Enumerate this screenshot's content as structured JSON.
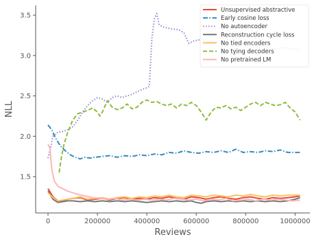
{
  "chart_data": {
    "type": "line",
    "xlabel": "Reviews",
    "ylabel": "NLL",
    "xlim": [
      -50000,
      1060000
    ],
    "ylim": [
      1.05,
      3.62
    ],
    "x_ticks": [
      0,
      200000,
      400000,
      600000,
      800000,
      1000000
    ],
    "x_tick_labels": [
      "0",
      "200000",
      "400000",
      "600000",
      "800000",
      "1000000"
    ],
    "y_ticks": [
      1.5,
      2.0,
      2.5,
      3.0,
      3.5
    ],
    "y_tick_labels": [
      "1.5",
      "2.0",
      "2.5",
      "3.0",
      "3.5"
    ],
    "grid": false,
    "legend_position": "top-right",
    "series": [
      {
        "name": "Unsupervised abstractive",
        "color": "#e24a33",
        "dash": "solid",
        "points": [
          [
            0,
            1.35
          ],
          [
            20000,
            1.25
          ],
          [
            40000,
            1.2
          ],
          [
            60000,
            1.2
          ],
          [
            80000,
            1.22
          ],
          [
            100000,
            1.23
          ],
          [
            130000,
            1.24
          ],
          [
            160000,
            1.21
          ],
          [
            190000,
            1.22
          ],
          [
            220000,
            1.23
          ],
          [
            250000,
            1.21
          ],
          [
            280000,
            1.23
          ],
          [
            310000,
            1.24
          ],
          [
            340000,
            1.22
          ],
          [
            370000,
            1.23
          ],
          [
            400000,
            1.22
          ],
          [
            430000,
            1.24
          ],
          [
            460000,
            1.23
          ],
          [
            490000,
            1.25
          ],
          [
            520000,
            1.23
          ],
          [
            550000,
            1.22
          ],
          [
            580000,
            1.25
          ],
          [
            610000,
            1.24
          ],
          [
            640000,
            1.22
          ],
          [
            670000,
            1.24
          ],
          [
            700000,
            1.25
          ],
          [
            730000,
            1.23
          ],
          [
            760000,
            1.22
          ],
          [
            790000,
            1.24
          ],
          [
            820000,
            1.25
          ],
          [
            850000,
            1.23
          ],
          [
            880000,
            1.22
          ],
          [
            910000,
            1.24
          ],
          [
            940000,
            1.23
          ],
          [
            970000,
            1.24
          ],
          [
            1000000,
            1.25
          ],
          [
            1020000,
            1.26
          ]
        ]
      },
      {
        "name": "Early cosine loss",
        "color": "#348abd",
        "dash": "dashdot",
        "points": [
          [
            0,
            2.14
          ],
          [
            15000,
            2.08
          ],
          [
            30000,
            1.98
          ],
          [
            50000,
            1.88
          ],
          [
            70000,
            1.82
          ],
          [
            90000,
            1.77
          ],
          [
            110000,
            1.74
          ],
          [
            130000,
            1.72
          ],
          [
            150000,
            1.74
          ],
          [
            170000,
            1.73
          ],
          [
            190000,
            1.74
          ],
          [
            220000,
            1.75
          ],
          [
            250000,
            1.76
          ],
          [
            280000,
            1.74
          ],
          [
            310000,
            1.76
          ],
          [
            340000,
            1.75
          ],
          [
            370000,
            1.77
          ],
          [
            400000,
            1.76
          ],
          [
            430000,
            1.78
          ],
          [
            460000,
            1.77
          ],
          [
            490000,
            1.8
          ],
          [
            520000,
            1.79
          ],
          [
            550000,
            1.82
          ],
          [
            580000,
            1.8
          ],
          [
            610000,
            1.79
          ],
          [
            640000,
            1.81
          ],
          [
            670000,
            1.8
          ],
          [
            700000,
            1.82
          ],
          [
            730000,
            1.8
          ],
          [
            760000,
            1.84
          ],
          [
            790000,
            1.8
          ],
          [
            820000,
            1.81
          ],
          [
            850000,
            1.8
          ],
          [
            880000,
            1.82
          ],
          [
            910000,
            1.81
          ],
          [
            940000,
            1.83
          ],
          [
            970000,
            1.8
          ],
          [
            1000000,
            1.8
          ],
          [
            1020000,
            1.8
          ]
        ]
      },
      {
        "name": "No autoencoder",
        "color": "#988ed5",
        "dash": "dotted",
        "points": [
          [
            0,
            1.73
          ],
          [
            10000,
            1.85
          ],
          [
            20000,
            2.0
          ],
          [
            40000,
            2.05
          ],
          [
            60000,
            2.06
          ],
          [
            80000,
            2.08
          ],
          [
            100000,
            2.12
          ],
          [
            120000,
            2.2
          ],
          [
            140000,
            2.3
          ],
          [
            160000,
            2.38
          ],
          [
            180000,
            2.44
          ],
          [
            200000,
            2.48
          ],
          [
            220000,
            2.46
          ],
          [
            240000,
            2.42
          ],
          [
            260000,
            2.48
          ],
          [
            280000,
            2.5
          ],
          [
            300000,
            2.48
          ],
          [
            320000,
            2.5
          ],
          [
            340000,
            2.52
          ],
          [
            360000,
            2.55
          ],
          [
            380000,
            2.58
          ],
          [
            400000,
            2.6
          ],
          [
            410000,
            2.62
          ],
          [
            420000,
            3.2
          ],
          [
            430000,
            3.45
          ],
          [
            440000,
            3.52
          ],
          [
            450000,
            3.38
          ],
          [
            470000,
            3.35
          ],
          [
            500000,
            3.33
          ],
          [
            530000,
            3.32
          ],
          [
            550000,
            3.28
          ],
          [
            570000,
            3.15
          ],
          [
            590000,
            3.18
          ],
          [
            620000,
            3.2
          ],
          [
            650000,
            3.17
          ],
          [
            680000,
            3.18
          ],
          [
            710000,
            3.15
          ],
          [
            740000,
            3.17
          ],
          [
            770000,
            3.12
          ],
          [
            800000,
            3.14
          ],
          [
            830000,
            3.1
          ],
          [
            860000,
            3.12
          ],
          [
            890000,
            3.1
          ],
          [
            920000,
            3.08
          ],
          [
            950000,
            3.1
          ],
          [
            980000,
            3.08
          ],
          [
            1000000,
            3.1
          ],
          [
            1020000,
            3.05
          ]
        ]
      },
      {
        "name": "Reconstruction cycle loss",
        "color": "#777777",
        "dash": "solid",
        "points": [
          [
            0,
            1.32
          ],
          [
            20000,
            1.22
          ],
          [
            40000,
            1.18
          ],
          [
            60000,
            1.19
          ],
          [
            80000,
            1.2
          ],
          [
            100000,
            1.2
          ],
          [
            130000,
            1.19
          ],
          [
            160000,
            1.2
          ],
          [
            190000,
            1.19
          ],
          [
            220000,
            1.2
          ],
          [
            250000,
            1.19
          ],
          [
            280000,
            1.2
          ],
          [
            310000,
            1.19
          ],
          [
            340000,
            1.2
          ],
          [
            370000,
            1.19
          ],
          [
            400000,
            1.18
          ],
          [
            430000,
            1.19
          ],
          [
            460000,
            1.2
          ],
          [
            490000,
            1.19
          ],
          [
            520000,
            1.2
          ],
          [
            550000,
            1.19
          ],
          [
            580000,
            1.2
          ],
          [
            600000,
            1.18
          ],
          [
            620000,
            1.17
          ],
          [
            640000,
            1.19
          ],
          [
            670000,
            1.2
          ],
          [
            700000,
            1.19
          ],
          [
            730000,
            1.2
          ],
          [
            760000,
            1.19
          ],
          [
            790000,
            1.2
          ],
          [
            820000,
            1.19
          ],
          [
            850000,
            1.2
          ],
          [
            880000,
            1.19
          ],
          [
            910000,
            1.2
          ],
          [
            940000,
            1.19
          ],
          [
            970000,
            1.2
          ],
          [
            1000000,
            1.22
          ],
          [
            1020000,
            1.24
          ]
        ]
      },
      {
        "name": "No tied encoders",
        "color": "#fbc15e",
        "dash": "solid",
        "points": [
          [
            0,
            1.3
          ],
          [
            20000,
            1.24
          ],
          [
            40000,
            1.2
          ],
          [
            60000,
            1.21
          ],
          [
            80000,
            1.22
          ],
          [
            100000,
            1.23
          ],
          [
            130000,
            1.25
          ],
          [
            160000,
            1.22
          ],
          [
            190000,
            1.23
          ],
          [
            220000,
            1.24
          ],
          [
            250000,
            1.22
          ],
          [
            280000,
            1.24
          ],
          [
            310000,
            1.25
          ],
          [
            340000,
            1.23
          ],
          [
            370000,
            1.25
          ],
          [
            400000,
            1.24
          ],
          [
            430000,
            1.26
          ],
          [
            460000,
            1.25
          ],
          [
            490000,
            1.27
          ],
          [
            520000,
            1.25
          ],
          [
            550000,
            1.24
          ],
          [
            580000,
            1.27
          ],
          [
            610000,
            1.26
          ],
          [
            640000,
            1.25
          ],
          [
            670000,
            1.27
          ],
          [
            700000,
            1.26
          ],
          [
            730000,
            1.25
          ],
          [
            760000,
            1.27
          ],
          [
            790000,
            1.26
          ],
          [
            820000,
            1.28
          ],
          [
            850000,
            1.26
          ],
          [
            880000,
            1.25
          ],
          [
            910000,
            1.27
          ],
          [
            940000,
            1.26
          ],
          [
            970000,
            1.27
          ],
          [
            1000000,
            1.27
          ],
          [
            1020000,
            1.27
          ]
        ]
      },
      {
        "name": "No tying decoders",
        "color": "#8eba42",
        "dash": "dashed",
        "points": [
          [
            45000,
            1.55
          ],
          [
            55000,
            1.75
          ],
          [
            65000,
            1.9
          ],
          [
            80000,
            2.05
          ],
          [
            100000,
            2.2
          ],
          [
            120000,
            2.28
          ],
          [
            140000,
            2.3
          ],
          [
            160000,
            2.32
          ],
          [
            180000,
            2.35
          ],
          [
            200000,
            2.3
          ],
          [
            210000,
            2.25
          ],
          [
            220000,
            2.3
          ],
          [
            240000,
            2.44
          ],
          [
            260000,
            2.36
          ],
          [
            280000,
            2.33
          ],
          [
            300000,
            2.35
          ],
          [
            320000,
            2.4
          ],
          [
            340000,
            2.34
          ],
          [
            360000,
            2.36
          ],
          [
            380000,
            2.42
          ],
          [
            400000,
            2.45
          ],
          [
            420000,
            2.42
          ],
          [
            440000,
            2.43
          ],
          [
            460000,
            2.4
          ],
          [
            480000,
            2.38
          ],
          [
            500000,
            2.4
          ],
          [
            520000,
            2.35
          ],
          [
            540000,
            2.4
          ],
          [
            560000,
            2.38
          ],
          [
            580000,
            2.42
          ],
          [
            600000,
            2.38
          ],
          [
            620000,
            2.3
          ],
          [
            640000,
            2.2
          ],
          [
            660000,
            2.3
          ],
          [
            680000,
            2.36
          ],
          [
            700000,
            2.35
          ],
          [
            720000,
            2.38
          ],
          [
            740000,
            2.34
          ],
          [
            760000,
            2.36
          ],
          [
            780000,
            2.32
          ],
          [
            800000,
            2.36
          ],
          [
            820000,
            2.4
          ],
          [
            840000,
            2.42
          ],
          [
            860000,
            2.38
          ],
          [
            880000,
            2.42
          ],
          [
            900000,
            2.4
          ],
          [
            920000,
            2.38
          ],
          [
            940000,
            2.39
          ],
          [
            960000,
            2.42
          ],
          [
            980000,
            2.35
          ],
          [
            1000000,
            2.3
          ],
          [
            1020000,
            2.2
          ]
        ]
      },
      {
        "name": "No pretrained LM",
        "color": "#ffb5b8",
        "dash": "solid",
        "points": [
          [
            0,
            1.9
          ],
          [
            8000,
            1.85
          ],
          [
            15000,
            1.6
          ],
          [
            25000,
            1.45
          ],
          [
            40000,
            1.38
          ],
          [
            60000,
            1.35
          ],
          [
            80000,
            1.32
          ],
          [
            100000,
            1.3
          ],
          [
            120000,
            1.28
          ],
          [
            150000,
            1.26
          ],
          [
            180000,
            1.24
          ],
          [
            210000,
            1.23
          ],
          [
            240000,
            1.22
          ],
          [
            270000,
            1.23
          ],
          [
            300000,
            1.21
          ],
          [
            330000,
            1.22
          ],
          [
            360000,
            1.21
          ],
          [
            390000,
            1.22
          ],
          [
            420000,
            1.21
          ],
          [
            450000,
            1.22
          ],
          [
            480000,
            1.21
          ],
          [
            510000,
            1.23
          ],
          [
            540000,
            1.22
          ],
          [
            570000,
            1.21
          ],
          [
            600000,
            1.22
          ],
          [
            630000,
            1.2
          ],
          [
            660000,
            1.22
          ],
          [
            690000,
            1.21
          ],
          [
            720000,
            1.23
          ],
          [
            750000,
            1.2
          ],
          [
            780000,
            1.21
          ],
          [
            810000,
            1.22
          ],
          [
            840000,
            1.2
          ],
          [
            870000,
            1.22
          ],
          [
            900000,
            1.21
          ],
          [
            930000,
            1.22
          ],
          [
            960000,
            1.21
          ],
          [
            990000,
            1.2
          ],
          [
            1020000,
            1.21
          ]
        ]
      }
    ]
  }
}
